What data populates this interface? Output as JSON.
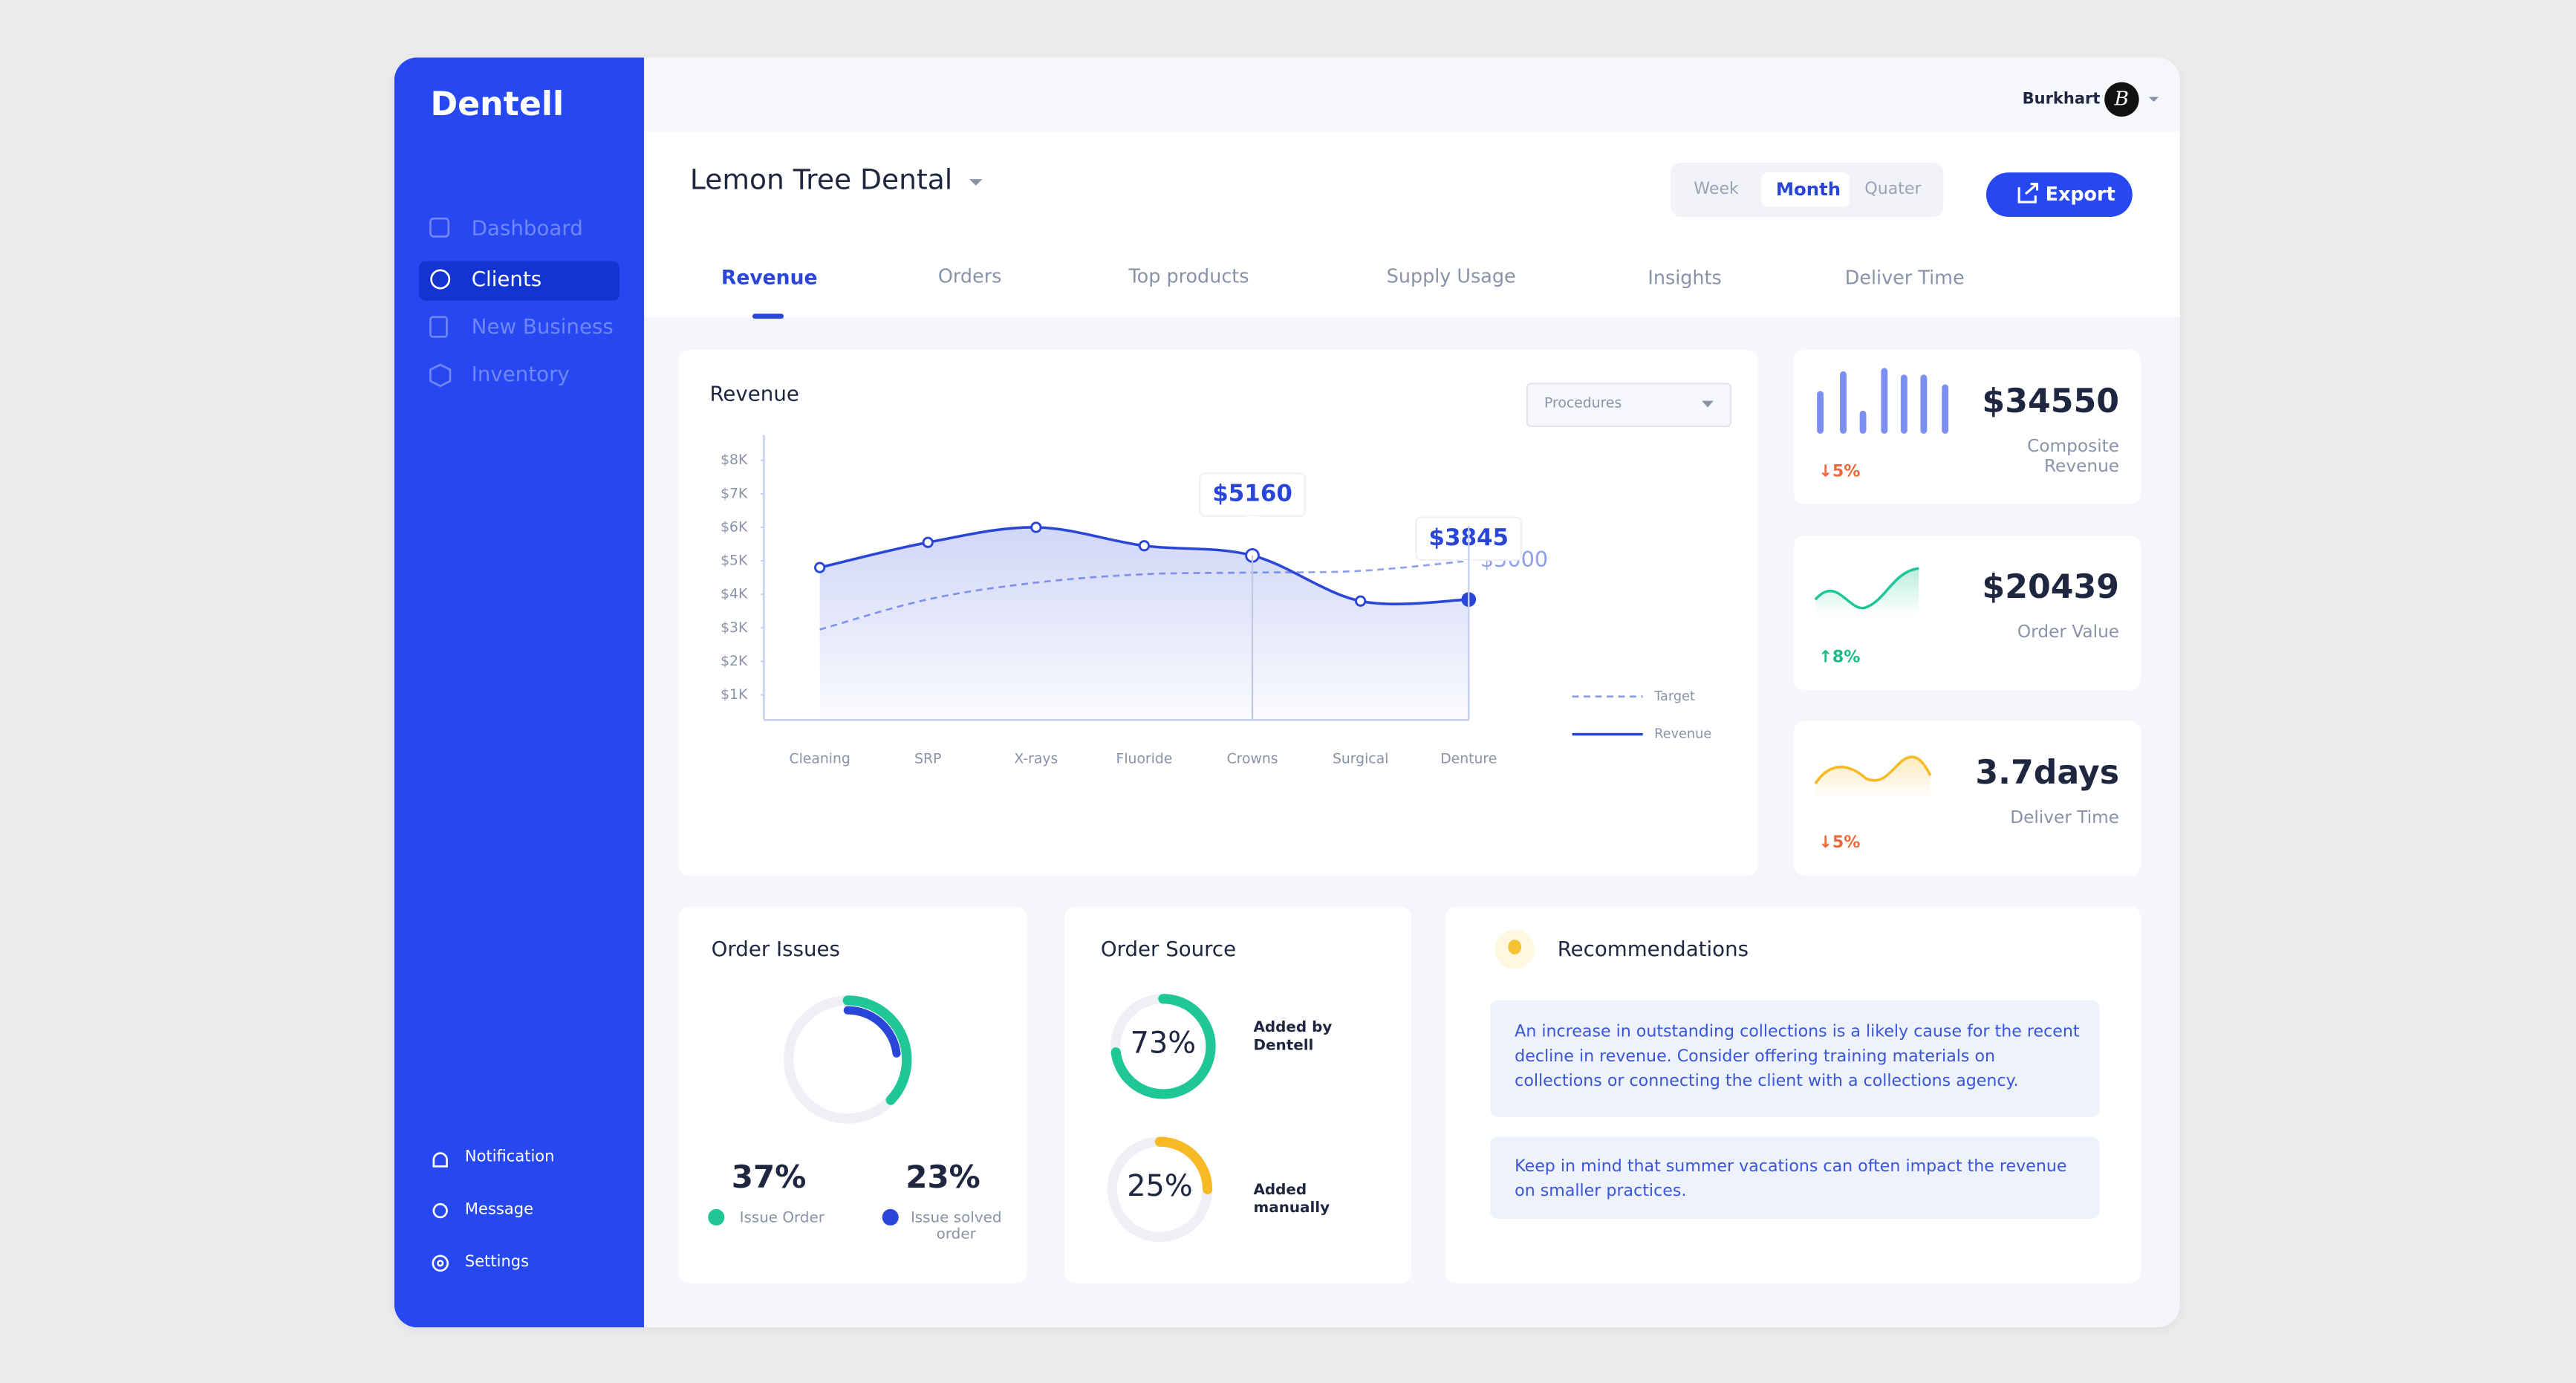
{
  "app": {
    "logo": "Dentell"
  },
  "sidebar": {
    "nav": [
      "Dashboard",
      "Clients",
      "New Business",
      "Inventory"
    ],
    "footer": [
      "Notification",
      "Message",
      "Settings"
    ]
  },
  "user": {
    "name": "Burkhart",
    "initial": "B"
  },
  "header": {
    "title": "Lemon Tree Dental",
    "periods": [
      "Week",
      "Month",
      "Quater"
    ],
    "export": "Export"
  },
  "tabs": [
    "Revenue",
    "Orders",
    "Top products",
    "Supply Usage",
    "Insights",
    "Deliver Time"
  ],
  "chart_data": {
    "type": "line",
    "title": "Revenue",
    "filter": "Procedures",
    "categories": [
      "Cleaning",
      "SRP",
      "X-rays",
      "Fluoride",
      "Crowns",
      "Surgical",
      "Denture"
    ],
    "series": [
      {
        "name": "Target",
        "color": "#8d9ff0",
        "dashed": true,
        "values": [
          2950,
          3850,
          4350,
          4600,
          4650,
          4700,
          5000
        ],
        "value_labels": [
          null,
          null,
          null,
          null,
          null,
          null,
          "$5000"
        ]
      },
      {
        "name": "Revenue",
        "color": "#2a46d9",
        "dashed": false,
        "values": [
          4800,
          5550,
          6000,
          5450,
          5160,
          3800,
          3845
        ],
        "value_labels": [
          null,
          null,
          null,
          null,
          "$5160",
          null,
          "$3845"
        ]
      }
    ],
    "ylim": [
      250,
      8750
    ],
    "yticks": [
      {
        "value": 1000,
        "label": "$1K"
      },
      {
        "value": 2000,
        "label": "$2K"
      },
      {
        "value": 3000,
        "label": "$3K"
      },
      {
        "value": 4000,
        "label": "$4K"
      },
      {
        "value": 5000,
        "label": "$5K"
      },
      {
        "value": 6000,
        "label": "$6K"
      },
      {
        "value": 7000,
        "label": "$7K"
      },
      {
        "value": 8000,
        "label": "$8K"
      }
    ]
  },
  "kpis": [
    {
      "value": "$34550",
      "label": "Composite Revenue",
      "change": "↓5%",
      "change_color": "#f0683a"
    },
    {
      "value": "$20439",
      "label": "Order Value",
      "change": "↑8%",
      "change_color": "#17bb88"
    },
    {
      "value": "3.7days",
      "label": "Deliver Time",
      "change": "↓5%",
      "change_color": "#f0683a"
    }
  ],
  "order_issues": {
    "title": "Order Issues",
    "items": [
      {
        "value": 37,
        "label": "37%",
        "name": "Issue Order",
        "color": "#1fc796"
      },
      {
        "value": 23,
        "label": "23%",
        "name": "Issue solved order",
        "color": "#2a46d9"
      }
    ]
  },
  "order_source": {
    "title": "Order Source",
    "items": [
      {
        "value": 73,
        "label": "73%",
        "name": "Added by Dentell",
        "color": "#1fc796"
      },
      {
        "value": 25,
        "label": "25%",
        "name": "Added manually",
        "color": "#f7b924"
      }
    ]
  },
  "recommendations": {
    "title": "Recommendations",
    "items": [
      "An increase in outstanding collections is a likely cause for the recent decline in revenue. Consider offering training materials on collections or connecting the client with a collections agency.",
      "Keep in mind that summer vacations can often impact the revenue on smaller practices."
    ]
  }
}
